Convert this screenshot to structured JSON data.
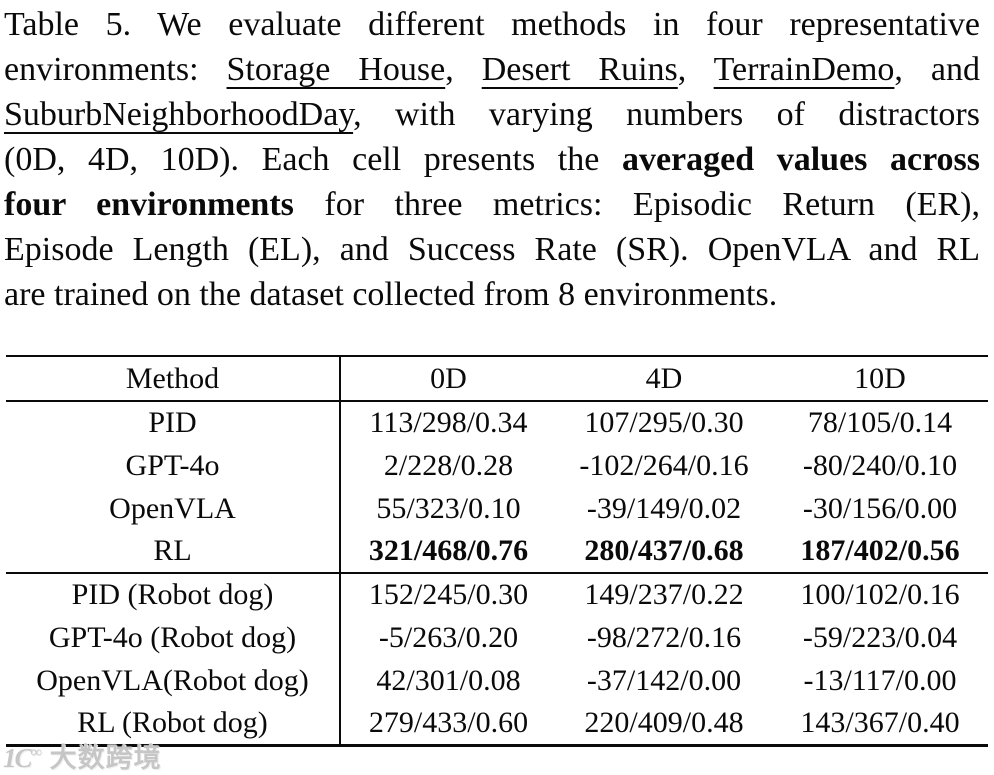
{
  "caption": {
    "lines": [
      [
        {
          "t": "Table 5.  We evaluate different methods in four representative"
        }
      ],
      [
        {
          "t": "environments:  "
        },
        {
          "t": "Storage House",
          "u": true
        },
        {
          "t": ", "
        },
        {
          "t": "Desert Ruins",
          "u": true
        },
        {
          "t": ", "
        },
        {
          "t": "TerrainDemo",
          "u": true
        },
        {
          "t": ", and"
        }
      ],
      [
        {
          "t": "SuburbNeighborhoodDay",
          "u": true
        },
        {
          "t": ", with varying numbers of distractors"
        }
      ],
      [
        {
          "t": "(0D, 4D, 10D). Each cell presents the "
        },
        {
          "t": "averaged values across",
          "b": true
        }
      ],
      [
        {
          "t": "four environments",
          "b": true
        },
        {
          "t": " for three metrics:  Episodic Return (ER),"
        }
      ],
      [
        {
          "t": "Episode Length (EL), and Success Rate (SR). OpenVLA and RL"
        }
      ],
      [
        {
          "t": "are trained on the dataset collected from 8 environments."
        }
      ]
    ]
  },
  "table": {
    "columns": [
      "Method",
      "0D",
      "4D",
      "10D"
    ],
    "groups": [
      {
        "rows": [
          {
            "method": "PID",
            "values": [
              "113/298/0.34",
              "107/295/0.30",
              "78/105/0.14"
            ],
            "bold_values": false
          },
          {
            "method": "GPT-4o",
            "values": [
              "2/228/0.28",
              "-102/264/0.16",
              "-80/240/0.10"
            ],
            "bold_values": false
          },
          {
            "method": "OpenVLA",
            "values": [
              "55/323/0.10",
              "-39/149/0.02",
              "-30/156/0.00"
            ],
            "bold_values": false
          },
          {
            "method": "RL",
            "values": [
              "321/468/0.76",
              "280/437/0.68",
              "187/402/0.56"
            ],
            "bold_values": true
          }
        ]
      },
      {
        "rows": [
          {
            "method": "PID (Robot dog)",
            "values": [
              "152/245/0.30",
              "149/237/0.22",
              "100/102/0.16"
            ],
            "bold_values": false
          },
          {
            "method": "GPT-4o (Robot dog)",
            "values": [
              "-5/263/0.20",
              "-98/272/0.16",
              "-59/223/0.04"
            ],
            "bold_values": false
          },
          {
            "method": "OpenVLA(Robot dog)",
            "values": [
              "42/301/0.08",
              "-37/142/0.00",
              "-13/117/0.00"
            ],
            "bold_values": false
          },
          {
            "method": "RL (Robot dog)",
            "values": [
              "279/433/0.60",
              "220/409/0.48",
              "143/367/0.40"
            ],
            "bold_values": false
          }
        ]
      }
    ],
    "cell_format": "ER/EL/SR"
  },
  "watermark": {
    "logo": "1C",
    "logo_sup": "∞",
    "text": "大数跨境"
  }
}
